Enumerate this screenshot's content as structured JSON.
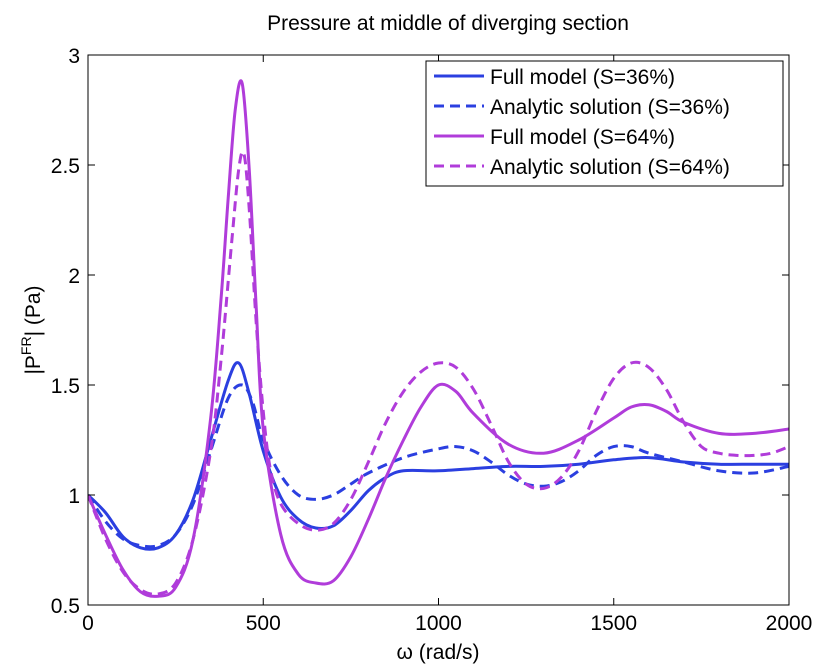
{
  "chart_data": {
    "type": "line",
    "title": "Pressure at middle of diverging section",
    "xlabel": "ω (rad/s)",
    "ylabel_main": "|P",
    "ylabel_sup": "FR",
    "ylabel_tail": "| (Pa)",
    "xlim": [
      0,
      2000
    ],
    "ylim": [
      0.5,
      3
    ],
    "xticks": [
      0,
      500,
      1000,
      1500,
      2000
    ],
    "xtick_labels": [
      "0",
      "500",
      "1000",
      "1500",
      "2000"
    ],
    "yticks": [
      0.5,
      1,
      1.5,
      2,
      2.5,
      3
    ],
    "ytick_labels": [
      "0.5",
      "1",
      "1.5",
      "2",
      "2.5",
      "3"
    ],
    "grid": false,
    "legend_position": "top-right",
    "series": [
      {
        "name": "Full model (S=36%)",
        "color": "#2b3fe0",
        "dash": "solid",
        "x": [
          0,
          50,
          100,
          150,
          200,
          250,
          300,
          350,
          400,
          430,
          460,
          500,
          550,
          600,
          650,
          700,
          750,
          800,
          850,
          900,
          1000,
          1100,
          1200,
          1300,
          1400,
          1500,
          1600,
          1700,
          1800,
          1900,
          2000
        ],
        "y": [
          1.0,
          0.92,
          0.81,
          0.76,
          0.76,
          0.82,
          0.98,
          1.25,
          1.52,
          1.6,
          1.46,
          1.2,
          0.99,
          0.89,
          0.85,
          0.86,
          0.93,
          1.02,
          1.08,
          1.11,
          1.11,
          1.12,
          1.13,
          1.13,
          1.14,
          1.16,
          1.17,
          1.15,
          1.14,
          1.14,
          1.14
        ]
      },
      {
        "name": "Analytic solution (S=36%)",
        "color": "#2b3fe0",
        "dash": "dashed",
        "x": [
          0,
          50,
          100,
          150,
          200,
          250,
          300,
          350,
          400,
          440,
          470,
          500,
          550,
          600,
          650,
          700,
          750,
          800,
          900,
          1000,
          1050,
          1100,
          1150,
          1200,
          1250,
          1300,
          1350,
          1400,
          1450,
          1500,
          1550,
          1600,
          1700,
          1800,
          1900,
          2000
        ],
        "y": [
          1.0,
          0.88,
          0.8,
          0.77,
          0.77,
          0.82,
          0.96,
          1.2,
          1.44,
          1.5,
          1.42,
          1.25,
          1.09,
          1.0,
          0.98,
          1.0,
          1.05,
          1.1,
          1.17,
          1.21,
          1.22,
          1.2,
          1.15,
          1.09,
          1.05,
          1.04,
          1.06,
          1.11,
          1.18,
          1.22,
          1.22,
          1.19,
          1.15,
          1.11,
          1.1,
          1.13
        ]
      },
      {
        "name": "Full model (S=64%)",
        "color": "#b03cda",
        "dash": "solid",
        "x": [
          0,
          50,
          100,
          150,
          200,
          250,
          300,
          350,
          380,
          400,
          420,
          440,
          460,
          480,
          500,
          550,
          600,
          650,
          700,
          750,
          800,
          850,
          900,
          950,
          1000,
          1050,
          1100,
          1200,
          1300,
          1400,
          1500,
          1550,
          1600,
          1650,
          1700,
          1800,
          1900,
          2000
        ],
        "y": [
          1.0,
          0.82,
          0.66,
          0.56,
          0.54,
          0.58,
          0.8,
          1.35,
          1.9,
          2.35,
          2.75,
          2.87,
          2.48,
          1.85,
          1.3,
          0.82,
          0.64,
          0.6,
          0.61,
          0.72,
          0.89,
          1.08,
          1.25,
          1.4,
          1.5,
          1.47,
          1.37,
          1.23,
          1.19,
          1.25,
          1.35,
          1.4,
          1.41,
          1.38,
          1.33,
          1.28,
          1.28,
          1.3
        ]
      },
      {
        "name": "Analytic solution (S=64%)",
        "color": "#b03cda",
        "dash": "dashed",
        "x": [
          0,
          50,
          100,
          150,
          200,
          250,
          300,
          350,
          380,
          410,
          430,
          445,
          460,
          480,
          500,
          520,
          550,
          600,
          650,
          700,
          750,
          800,
          850,
          900,
          950,
          1000,
          1050,
          1100,
          1150,
          1200,
          1250,
          1300,
          1350,
          1400,
          1450,
          1500,
          1550,
          1600,
          1650,
          1700,
          1750,
          1800,
          1850,
          1900,
          1950,
          2000
        ],
        "y": [
          1.0,
          0.8,
          0.65,
          0.57,
          0.55,
          0.6,
          0.8,
          1.2,
          1.62,
          2.15,
          2.48,
          2.55,
          2.3,
          1.78,
          1.38,
          1.12,
          0.96,
          0.87,
          0.84,
          0.87,
          0.98,
          1.15,
          1.33,
          1.47,
          1.56,
          1.6,
          1.58,
          1.48,
          1.32,
          1.15,
          1.05,
          1.03,
          1.08,
          1.2,
          1.38,
          1.53,
          1.6,
          1.58,
          1.48,
          1.33,
          1.22,
          1.19,
          1.18,
          1.18,
          1.19,
          1.22
        ]
      }
    ]
  }
}
